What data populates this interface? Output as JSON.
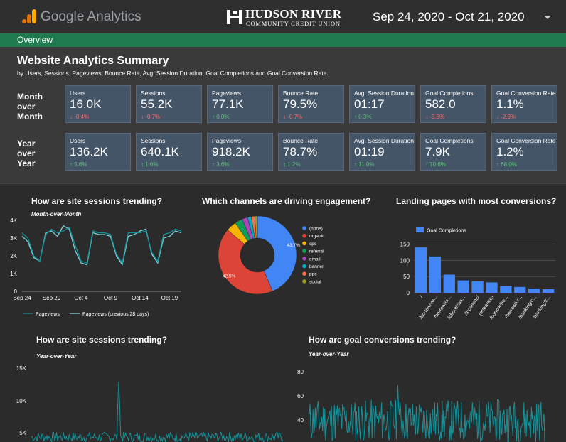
{
  "header": {
    "brand": "Google Analytics",
    "org_name": "HUDSON RIVER",
    "org_sub": "COMMUNITY CREDIT UNION",
    "date_range": "Sep 24, 2020 - Oct 21, 2020",
    "icons": [
      "google-analytics-logo",
      "hudson-river-logo",
      "chevron-down-icon"
    ]
  },
  "nav": {
    "tab": "Overview"
  },
  "summary": {
    "title": "Website Analytics Summary",
    "subtitle": "by Users, Sessions, Pageviews, Bounce Rate, Avg. Session Duration, Goal Completions and Goal Conversion Rate.",
    "rows": [
      {
        "label_lines": [
          "Month",
          "over",
          "Month"
        ],
        "cards": [
          {
            "label": "Users",
            "value": "16.0K",
            "delta": "-0.4%",
            "dir": "down"
          },
          {
            "label": "Sessions",
            "value": "55.2K",
            "delta": "-0.7%",
            "dir": "down"
          },
          {
            "label": "Pageviews",
            "value": "77.1K",
            "delta": "0.0%",
            "dir": "up"
          },
          {
            "label": "Bounce Rate",
            "value": "79.5%",
            "delta": "-0.7%",
            "dir": "down"
          },
          {
            "label": "Avg. Session Duration",
            "value": "01:17",
            "delta": "0.3%",
            "dir": "up"
          },
          {
            "label": "Goal Completions",
            "value": "582.0",
            "delta": "-3.6%",
            "dir": "down"
          },
          {
            "label": "Goal Conversion Rate",
            "value": "1.1%",
            "delta": "-2.9%",
            "dir": "down"
          }
        ]
      },
      {
        "label_lines": [
          "Year",
          "over",
          "Year"
        ],
        "cards": [
          {
            "label": "Users",
            "value": "136.2K",
            "delta": "5.6%",
            "dir": "up"
          },
          {
            "label": "Sessions",
            "value": "640.1K",
            "delta": "1.6%",
            "dir": "up"
          },
          {
            "label": "Pageviews",
            "value": "918.2K",
            "delta": "3.6%",
            "dir": "up"
          },
          {
            "label": "Bounce Rate",
            "value": "78.7%",
            "delta": "1.2%",
            "dir": "up"
          },
          {
            "label": "Avg. Session Duration",
            "value": "01:19",
            "delta": "11.0%",
            "dir": "up"
          },
          {
            "label": "Goal Completions",
            "value": "7.9K",
            "delta": "70.6%",
            "dir": "up"
          },
          {
            "label": "Goal Conversion Rate",
            "value": "1.2%",
            "delta": "68.0%",
            "dir": "up"
          }
        ]
      }
    ]
  },
  "chart_data": [
    {
      "type": "line",
      "title": "How are site sessions trending?",
      "subtitle": "Month-over-Month",
      "x": [
        "Sep 24",
        "Sep 25",
        "Sep 26",
        "Sep 27",
        "Sep 28",
        "Sep 29",
        "Sep 30",
        "Oct 1",
        "Oct 2",
        "Oct 3",
        "Oct 4",
        "Oct 5",
        "Oct 6",
        "Oct 7",
        "Oct 8",
        "Oct 9",
        "Oct 10",
        "Oct 11",
        "Oct 12",
        "Oct 13",
        "Oct 14",
        "Oct 15",
        "Oct 16",
        "Oct 17",
        "Oct 18",
        "Oct 19",
        "Oct 20",
        "Oct 21"
      ],
      "xticks": [
        "Sep 24",
        "Sep 29",
        "Oct 4",
        "Oct 9",
        "Oct 14",
        "Oct 19"
      ],
      "yticks": [
        "0",
        "1K",
        "2K",
        "3K",
        "4K"
      ],
      "ylim": [
        0,
        4000
      ],
      "series": [
        {
          "name": "Pageviews",
          "color": "#12939a",
          "values": [
            3300,
            3000,
            2000,
            1700,
            3200,
            3500,
            3300,
            3400,
            3600,
            2600,
            1700,
            1600,
            3400,
            3300,
            3300,
            3200,
            2100,
            1600,
            3300,
            3300,
            3300,
            3400,
            2200,
            1700,
            3200,
            3300,
            3500,
            3400
          ]
        },
        {
          "name": "Pageviews (previous 28 days)",
          "color": "#7fd3d8",
          "values": [
            3100,
            2800,
            1900,
            1700,
            3300,
            3400,
            3100,
            3700,
            3500,
            2300,
            1600,
            1500,
            3300,
            3200,
            3200,
            3100,
            2000,
            1500,
            3100,
            3200,
            3400,
            3500,
            2100,
            1600,
            3000,
            3100,
            3400,
            3300
          ]
        }
      ]
    },
    {
      "type": "pie",
      "title": "Which channels are driving engagement?",
      "categories": [
        "(none)",
        "organic",
        "cpc",
        "referral",
        "email",
        "banner",
        "ppc",
        "social"
      ],
      "values": [
        43.7,
        42.5,
        4.2,
        3.2,
        2.3,
        1.6,
        1.4,
        1.1
      ],
      "colors": [
        "#4285f4",
        "#db4437",
        "#f4b400",
        "#0f9d58",
        "#ab47bc",
        "#00acc1",
        "#ff7043",
        "#9e9d24"
      ],
      "labels": [
        "43.7%",
        "42.5%",
        "",
        "",
        "",
        "",
        "",
        ""
      ]
    },
    {
      "type": "bar",
      "title": "Landing pages with most conversions?",
      "legend": "Goal Completions",
      "categories": [
        "/",
        "/borrow/ve...",
        "/borrow/m...",
        "/about/con...",
        "/locations/",
        "(entrance)",
        "/borrow/ho...",
        "/borrow/cr...",
        "/banking/c...",
        "/banking/k..."
      ],
      "values": [
        140,
        112,
        56,
        38,
        35,
        32,
        20,
        18,
        13,
        11
      ],
      "yticks": [
        "0",
        "50",
        "100",
        "150"
      ],
      "ylim": [
        0,
        160
      ],
      "color": "#4285f4"
    },
    {
      "type": "line",
      "title": "How are site sessions trending?",
      "subtitle": "Year-over-Year",
      "yticks": [
        "5K",
        "10K",
        "15K"
      ],
      "series_color": "#12939a"
    },
    {
      "type": "line",
      "title": "How are goal conversions trending?",
      "subtitle": "Year-over-Year",
      "yticks": [
        "40",
        "60",
        "80"
      ],
      "series_color": "#12939a"
    }
  ]
}
